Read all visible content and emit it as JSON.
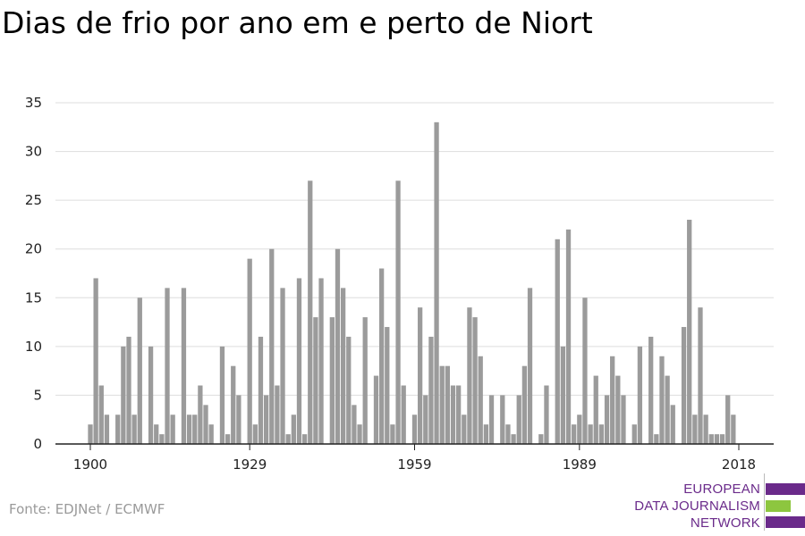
{
  "title": "Dias de frio por ano em e perto de Niort",
  "source": "Fonte: EDJNet / ECMWF",
  "logo": {
    "line1": "EUROPEAN",
    "line2": "DATA JOURNALISM",
    "line3": "NETWORK",
    "colors": [
      "#6a2a8a",
      "#8dc63f",
      "#6a2a8a"
    ]
  },
  "chart_data": {
    "type": "bar",
    "x": [
      1900,
      1901,
      1902,
      1903,
      1904,
      1905,
      1906,
      1907,
      1908,
      1909,
      1910,
      1911,
      1912,
      1913,
      1914,
      1915,
      1916,
      1917,
      1918,
      1919,
      1920,
      1921,
      1922,
      1923,
      1924,
      1925,
      1926,
      1927,
      1928,
      1929,
      1930,
      1931,
      1932,
      1933,
      1934,
      1935,
      1936,
      1937,
      1938,
      1939,
      1940,
      1941,
      1942,
      1943,
      1944,
      1945,
      1946,
      1947,
      1948,
      1949,
      1950,
      1951,
      1952,
      1953,
      1954,
      1955,
      1956,
      1957,
      1958,
      1959,
      1960,
      1961,
      1962,
      1963,
      1964,
      1965,
      1966,
      1967,
      1968,
      1969,
      1970,
      1971,
      1972,
      1973,
      1974,
      1975,
      1976,
      1977,
      1978,
      1979,
      1980,
      1981,
      1982,
      1983,
      1984,
      1985,
      1986,
      1987,
      1988,
      1989,
      1990,
      1991,
      1992,
      1993,
      1994,
      1995,
      1996,
      1997,
      1998,
      1999,
      2000,
      2001,
      2002,
      2003,
      2004,
      2005,
      2006,
      2007,
      2008,
      2009,
      2010,
      2011,
      2012,
      2013,
      2014,
      2015,
      2016,
      2017,
      2018
    ],
    "values": [
      2,
      17,
      6,
      3,
      0,
      3,
      10,
      11,
      3,
      15,
      0,
      10,
      2,
      1,
      16,
      3,
      0,
      16,
      3,
      3,
      6,
      4,
      2,
      0,
      10,
      1,
      8,
      5,
      0,
      19,
      2,
      11,
      5,
      20,
      6,
      16,
      1,
      3,
      17,
      1,
      27,
      13,
      17,
      0,
      13,
      20,
      16,
      11,
      4,
      2,
      13,
      0,
      7,
      18,
      12,
      2,
      27,
      6,
      0,
      3,
      14,
      5,
      11,
      33,
      8,
      8,
      6,
      6,
      3,
      14,
      13,
      9,
      2,
      5,
      0,
      5,
      2,
      1,
      5,
      8,
      16,
      0,
      1,
      6,
      0,
      21,
      10,
      22,
      2,
      3,
      15,
      2,
      7,
      2,
      5,
      9,
      7,
      5,
      0,
      2,
      10,
      0,
      11,
      1,
      9,
      7,
      4,
      0,
      12,
      23,
      3,
      14,
      3,
      1,
      1,
      1,
      5,
      3,
      0
    ],
    "x_ticks": [
      "1900",
      "1929",
      "1959",
      "1989",
      "2018"
    ],
    "y_ticks": [
      "0",
      "5",
      "10",
      "15",
      "20",
      "25",
      "30",
      "35"
    ],
    "ylim": [
      0,
      35
    ],
    "bar_color": "#9b9b9b",
    "grid": true
  }
}
